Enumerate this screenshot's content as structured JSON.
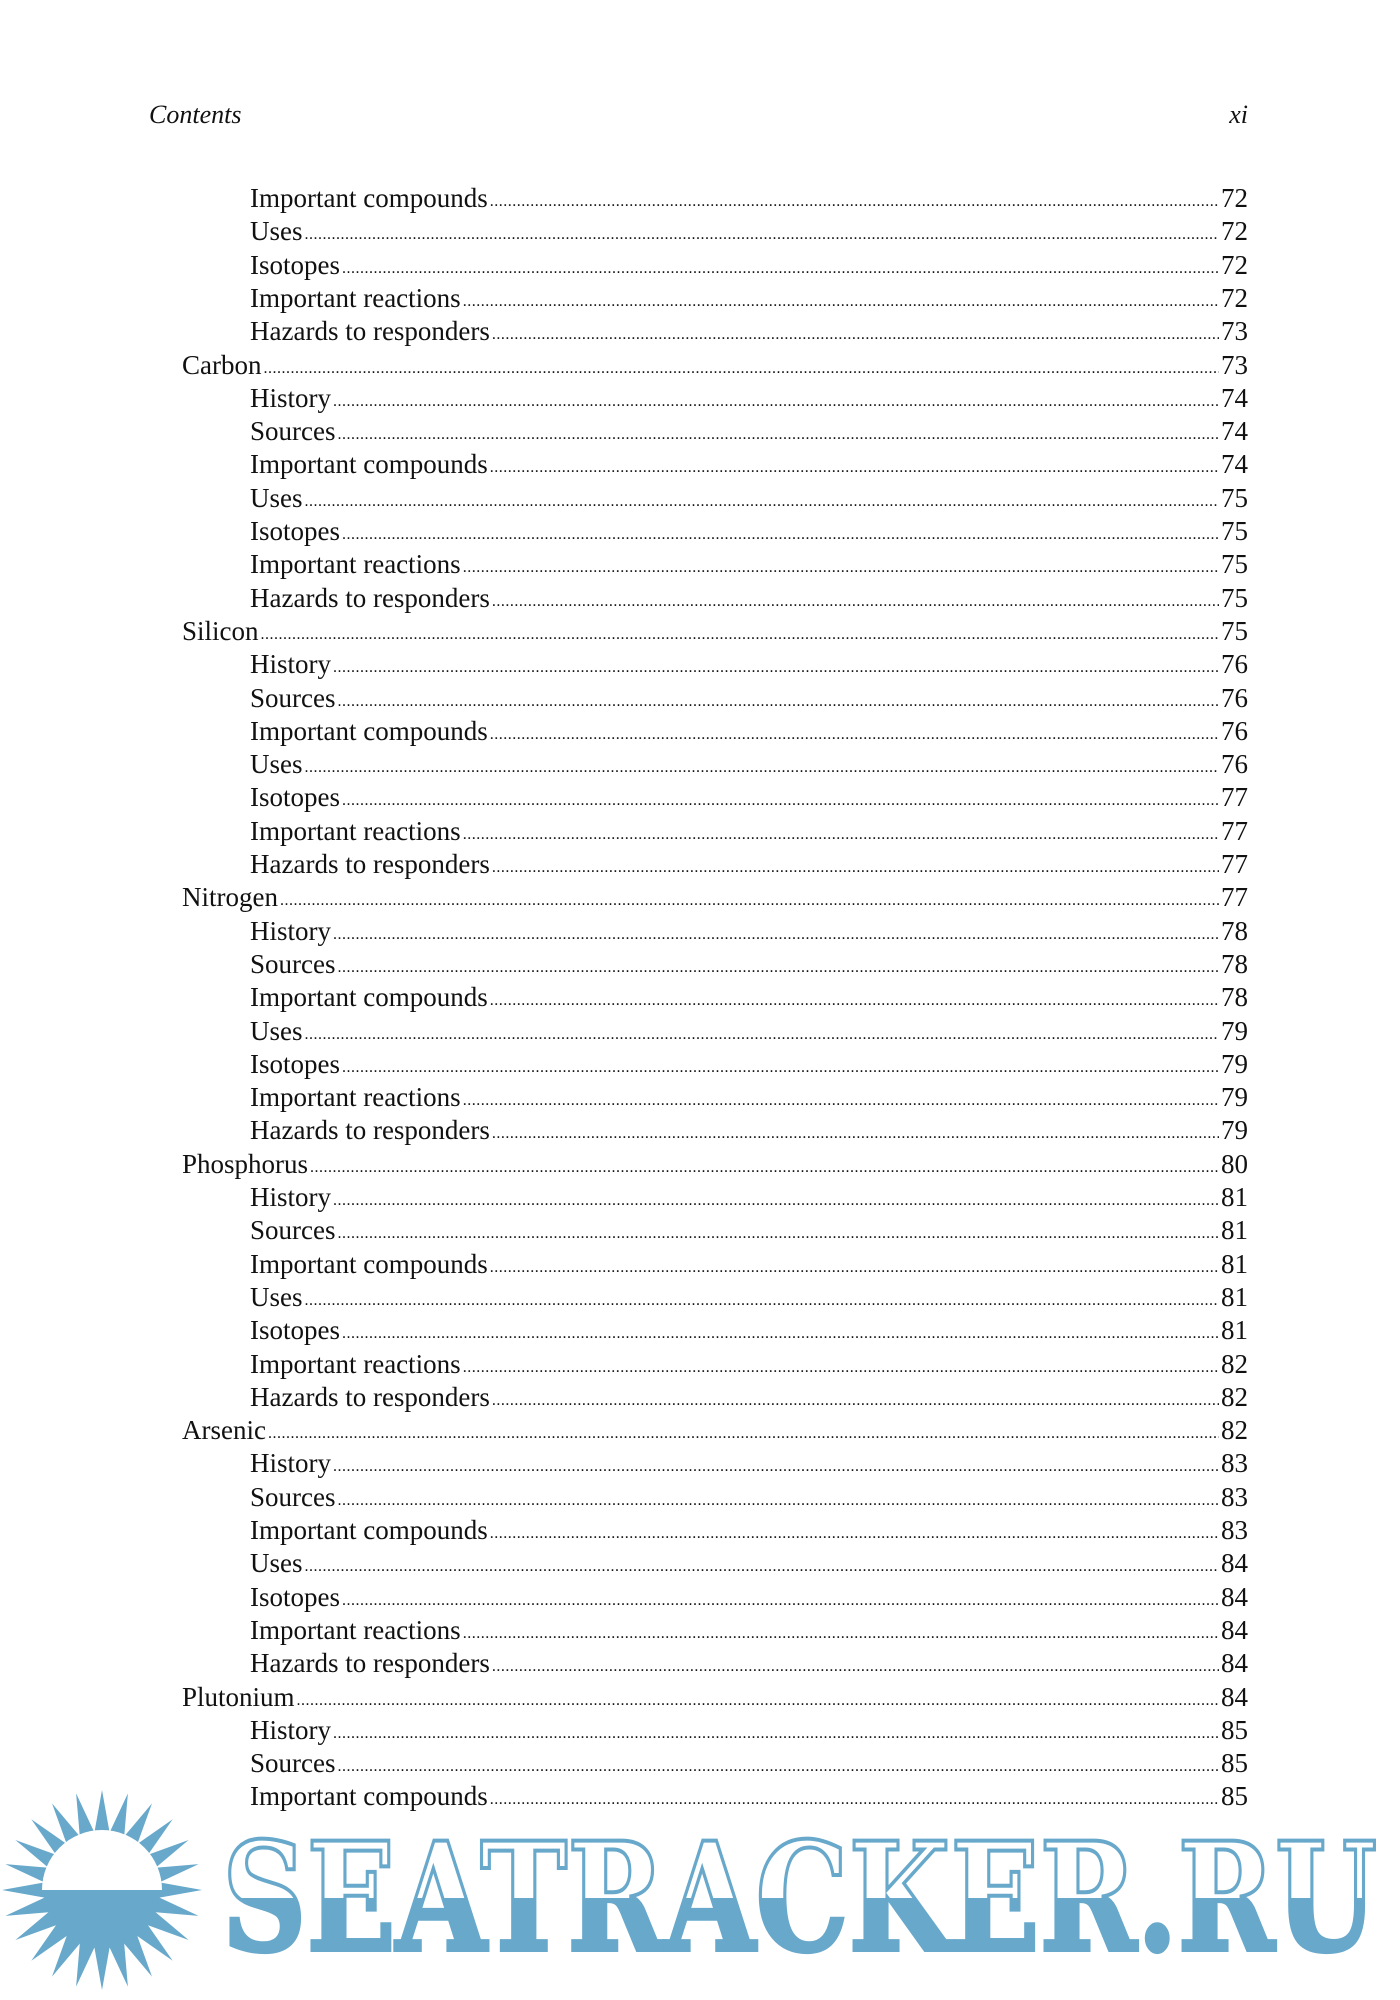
{
  "header": {
    "left": "Contents",
    "right": "xi"
  },
  "entries": [
    {
      "level": 2,
      "label": "Important compounds",
      "page": "72"
    },
    {
      "level": 2,
      "label": "Uses",
      "page": "72"
    },
    {
      "level": 2,
      "label": "Isotopes",
      "page": "72"
    },
    {
      "level": 2,
      "label": "Important reactions",
      "page": "72"
    },
    {
      "level": 2,
      "label": "Hazards to responders",
      "page": "73"
    },
    {
      "level": 1,
      "label": "Carbon",
      "page": "73"
    },
    {
      "level": 2,
      "label": "History",
      "page": "74"
    },
    {
      "level": 2,
      "label": "Sources",
      "page": "74"
    },
    {
      "level": 2,
      "label": "Important compounds",
      "page": "74"
    },
    {
      "level": 2,
      "label": "Uses",
      "page": "75"
    },
    {
      "level": 2,
      "label": "Isotopes",
      "page": "75"
    },
    {
      "level": 2,
      "label": "Important reactions",
      "page": "75"
    },
    {
      "level": 2,
      "label": "Hazards to responders",
      "page": "75"
    },
    {
      "level": 1,
      "label": "Silicon",
      "page": "75"
    },
    {
      "level": 2,
      "label": "History",
      "page": "76"
    },
    {
      "level": 2,
      "label": "Sources",
      "page": "76"
    },
    {
      "level": 2,
      "label": "Important compounds",
      "page": "76"
    },
    {
      "level": 2,
      "label": "Uses",
      "page": "76"
    },
    {
      "level": 2,
      "label": "Isotopes",
      "page": "77"
    },
    {
      "level": 2,
      "label": "Important reactions",
      "page": "77"
    },
    {
      "level": 2,
      "label": "Hazards to responders",
      "page": "77"
    },
    {
      "level": 1,
      "label": "Nitrogen",
      "page": "77"
    },
    {
      "level": 2,
      "label": "History",
      "page": "78"
    },
    {
      "level": 2,
      "label": "Sources",
      "page": "78"
    },
    {
      "level": 2,
      "label": "Important compounds",
      "page": "78"
    },
    {
      "level": 2,
      "label": "Uses",
      "page": "79"
    },
    {
      "level": 2,
      "label": "Isotopes",
      "page": "79"
    },
    {
      "level": 2,
      "label": "Important reactions",
      "page": "79"
    },
    {
      "level": 2,
      "label": "Hazards to responders",
      "page": "79"
    },
    {
      "level": 1,
      "label": "Phosphorus",
      "page": "80"
    },
    {
      "level": 2,
      "label": "History",
      "page": "81"
    },
    {
      "level": 2,
      "label": "Sources",
      "page": "81"
    },
    {
      "level": 2,
      "label": "Important compounds",
      "page": "81"
    },
    {
      "level": 2,
      "label": "Uses",
      "page": "81"
    },
    {
      "level": 2,
      "label": "Isotopes",
      "page": "81"
    },
    {
      "level": 2,
      "label": "Important reactions",
      "page": "82"
    },
    {
      "level": 2,
      "label": "Hazards to responders",
      "page": "82"
    },
    {
      "level": 1,
      "label": "Arsenic",
      "page": "82"
    },
    {
      "level": 2,
      "label": "History",
      "page": "83"
    },
    {
      "level": 2,
      "label": "Sources",
      "page": "83"
    },
    {
      "level": 2,
      "label": "Important compounds",
      "page": "83"
    },
    {
      "level": 2,
      "label": "Uses",
      "page": "84"
    },
    {
      "level": 2,
      "label": "Isotopes",
      "page": "84"
    },
    {
      "level": 2,
      "label": "Important reactions",
      "page": "84"
    },
    {
      "level": 2,
      "label": "Hazards to responders",
      "page": "84"
    },
    {
      "level": 1,
      "label": "Plutonium",
      "page": "84"
    },
    {
      "level": 2,
      "label": "History",
      "page": "85"
    },
    {
      "level": 2,
      "label": "Sources",
      "page": "85"
    },
    {
      "level": 2,
      "label": "Important compounds",
      "page": "85"
    }
  ],
  "watermark": {
    "text": "SEATRACKER.RU",
    "color": "#67a8cb",
    "icon": "sun-icon"
  }
}
